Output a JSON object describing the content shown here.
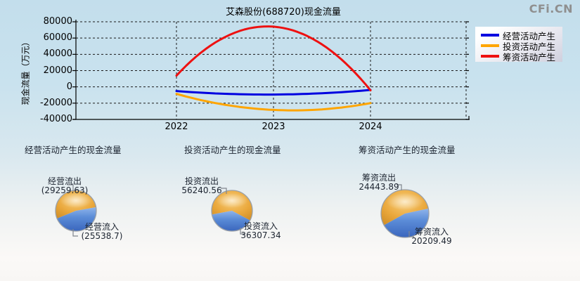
{
  "watermark": "CFi.CN",
  "line_chart": {
    "title": "艾森股份(688720)现金流量",
    "y_axis_label": "现金流量（万元）",
    "y_ticks": [
      "80000",
      "60000",
      "40000",
      "20000",
      "0",
      "-20000",
      "-40000"
    ],
    "x_ticks": [
      "2022",
      "2023",
      "2024"
    ],
    "legend": [
      {
        "label": "经营活动产生",
        "color": "#0000e0"
      },
      {
        "label": "投资活动产生",
        "color": "#ffa500"
      },
      {
        "label": "筹资活动产生",
        "color": "#ee1111"
      }
    ]
  },
  "chart_data": [
    {
      "type": "line",
      "title": "艾森股份(688720)现金流量",
      "x": [
        2022,
        2023,
        2024
      ],
      "xlabel": "",
      "ylabel": "现金流量（万元）",
      "ylim": [
        -40000,
        80000
      ],
      "grid": true,
      "legend_position": "top-right",
      "series": [
        {
          "name": "经营活动产生",
          "color": "#0000e0",
          "values": [
            -5100,
            -9400,
            -3721
          ]
        },
        {
          "name": "投资活动产生",
          "color": "#ffa500",
          "values": [
            -8600,
            -28300,
            -19933
          ]
        },
        {
          "name": "筹资活动产生",
          "color": "#ee1111",
          "values": [
            13800,
            74000,
            -4234
          ]
        }
      ]
    },
    {
      "type": "pie",
      "title": "经营活动产生的现金流量",
      "labels": [
        "经营流出",
        "经营流入"
      ],
      "values": [
        29259.63,
        25538.7
      ],
      "colors": [
        "#e8a93f",
        "#5d8ed8"
      ]
    },
    {
      "type": "pie",
      "title": "投资活动产生的现金流量",
      "labels": [
        "投资流出",
        "投资流入"
      ],
      "values": [
        56240.56,
        36307.34
      ],
      "colors": [
        "#e8a93f",
        "#5d8ed8"
      ]
    },
    {
      "type": "pie",
      "title": "筹资活动产生的现金流量",
      "labels": [
        "筹资流出",
        "筹资流入"
      ],
      "values": [
        24443.89,
        20209.49
      ],
      "colors": [
        "#e8a93f",
        "#5d8ed8"
      ]
    }
  ],
  "pie_sections": [
    {
      "title": "经营活动产生的现金流量",
      "out_label": "经营流出",
      "out_value": "(29259.63)",
      "in_label": "经营流入",
      "in_value": "(25538.7)"
    },
    {
      "title": "投资活动产生的现金流量",
      "out_label": "投资流出",
      "out_value": "56240.56",
      "in_label": "投资流入",
      "in_value": "36307.34"
    },
    {
      "title": "筹资活动产生的现金流量",
      "out_label": "筹资流出",
      "out_value": "24443.89",
      "in_label": "筹资流入",
      "in_value": "20209.49"
    }
  ]
}
